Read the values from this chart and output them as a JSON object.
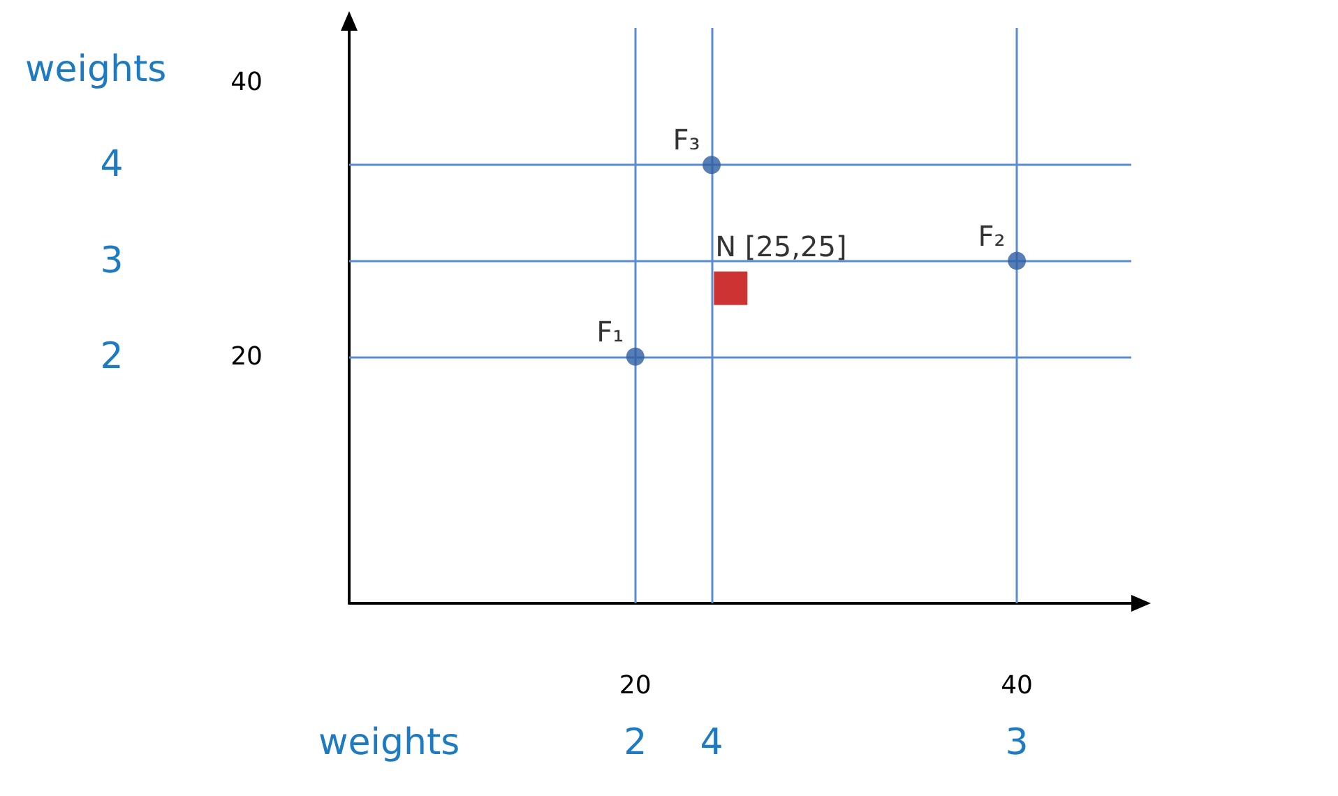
{
  "chart_data": {
    "type": "scatter",
    "xlim": [
      5,
      46
    ],
    "ylim": [
      2,
      44
    ],
    "xticks": [
      20,
      40
    ],
    "yticks": [
      20,
      40
    ],
    "grid": false,
    "series": [
      {
        "color": "#2e5fa3",
        "marker": "circle",
        "x": [
          20,
          40,
          24
        ],
        "values": [
          20,
          27,
          34
        ]
      },
      {
        "color": "#c00000",
        "marker": "square",
        "x": [
          25
        ],
        "values": [
          25
        ]
      }
    ],
    "ref_lines": [
      {
        "axis": "x",
        "value": 20,
        "color": "#5b8bd0"
      },
      {
        "axis": "x",
        "value": 24,
        "color": "#5b8bd0"
      },
      {
        "axis": "x",
        "value": 40,
        "color": "#5b8bd0"
      },
      {
        "axis": "y",
        "value": 34,
        "color": "#5b8bd0"
      },
      {
        "axis": "y",
        "value": 27,
        "color": "#5b8bd0"
      },
      {
        "axis": "y",
        "value": 20,
        "color": "#5b8bd0"
      }
    ],
    "annotations": [
      "weights",
      "weights",
      "2",
      "4",
      "3",
      "4",
      "3",
      "2",
      {
        "text": "F₁",
        "x": 20,
        "y": 20
      },
      {
        "text": "F₂",
        "x": 40,
        "y": 27
      },
      {
        "text": "F₃",
        "x": 24,
        "y": 34
      },
      {
        "text": "N [25,25]",
        "x": 25,
        "y": 25
      }
    ]
  }
}
